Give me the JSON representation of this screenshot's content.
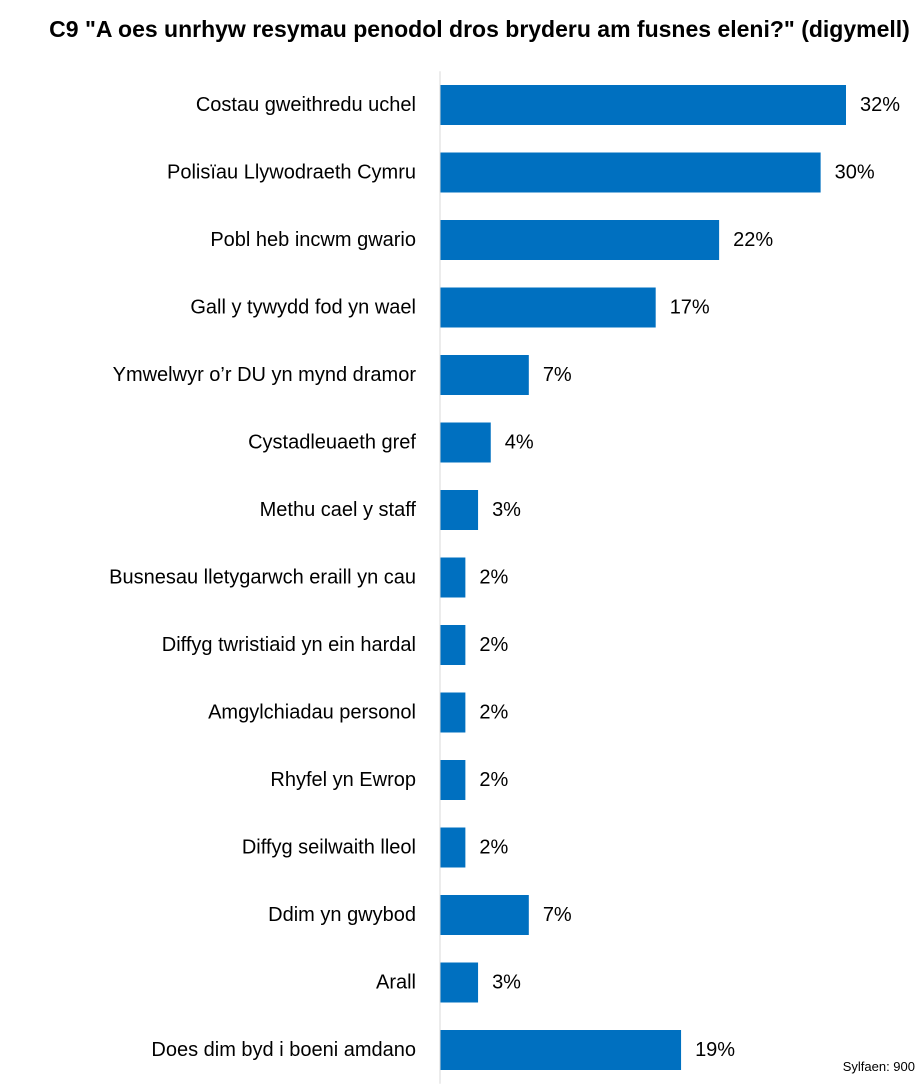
{
  "chart_data": {
    "type": "bar",
    "orientation": "horizontal",
    "title": "C9 \"A oes unrhyw resymau penodol dros bryderu am fusnes eleni?\" (digymell)",
    "categories": [
      "Costau gweithredu uchel",
      "Polisïau Llywodraeth Cymru",
      "Pobl heb incwm gwario",
      "Gall y tywydd fod yn wael",
      "Ymwelwyr  o’r DU yn mynd dramor",
      "Cystadleuaeth gref",
      "Methu cael y staff",
      "Busnesau lletygarwch eraill yn cau",
      "Diffyg twristiaid yn ein hardal",
      "Amgylchiadau personol",
      "Rhyfel yn Ewrop",
      "Diffyg seilwaith lleol",
      "Ddim yn gwybod",
      "Arall",
      "Does dim byd i boeni amdano"
    ],
    "values": [
      32,
      30,
      22,
      17,
      7,
      4,
      3,
      2,
      2,
      2,
      2,
      2,
      7,
      3,
      19
    ],
    "data_labels": [
      "32%",
      "30%",
      "22%",
      "17%",
      "7%",
      "4%",
      "3%",
      "2%",
      "2%",
      "2%",
      "2%",
      "2%",
      "7%",
      "3%",
      "19%"
    ],
    "xlim": [
      0,
      32
    ],
    "grid": false,
    "legend": "none",
    "bar_color": "#0070C0",
    "axis_color": "#D9D9D9"
  },
  "source_note": "Sylfaen: 900"
}
